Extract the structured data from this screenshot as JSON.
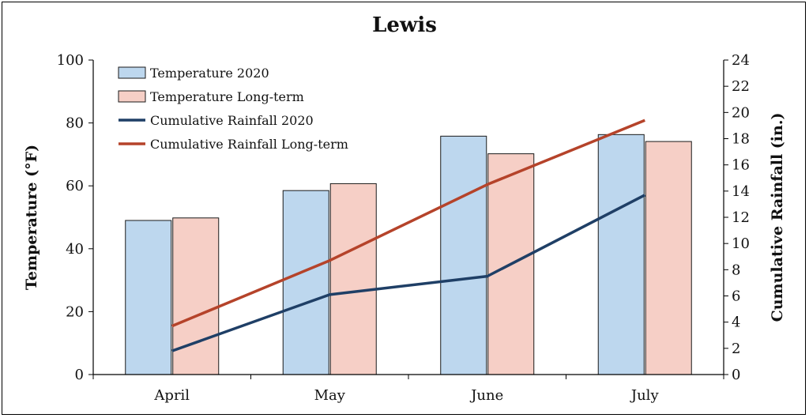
{
  "chart_data": {
    "type": "bar+line",
    "title": "Lewis",
    "categories": [
      "April",
      "May",
      "June",
      "July"
    ],
    "y_left": {
      "label": "Temperature (°F)",
      "range": [
        0,
        100
      ],
      "ticks": [
        "0",
        "20",
        "40",
        "60",
        "80",
        "100"
      ]
    },
    "y_right": {
      "label": "Cumulative Rainfall (in.)",
      "range": [
        0,
        24
      ],
      "ticks": [
        "0",
        "2",
        "4",
        "6",
        "8",
        "10",
        "12",
        "14",
        "16",
        "18",
        "20",
        "22",
        "24"
      ]
    },
    "bar_series": [
      {
        "name": "Temperature 2020",
        "values": [
          49,
          58.5,
          75.8,
          76.3
        ],
        "color": "#bdd7ee"
      },
      {
        "name": "Temperature Long-term",
        "values": [
          49.8,
          60.7,
          70.2,
          74.1
        ],
        "color": "#f6cfc6"
      }
    ],
    "line_series": [
      {
        "name": "Cumulative Rainfall 2020",
        "values": [
          1.8,
          6.1,
          7.5,
          13.7
        ],
        "color": "#1f3f66"
      },
      {
        "name": "Cumulative Rainfall Long-term",
        "values": [
          3.7,
          8.7,
          14.5,
          19.4
        ],
        "color": "#b5432a"
      }
    ],
    "grid": false,
    "legend_position": "top-left"
  }
}
